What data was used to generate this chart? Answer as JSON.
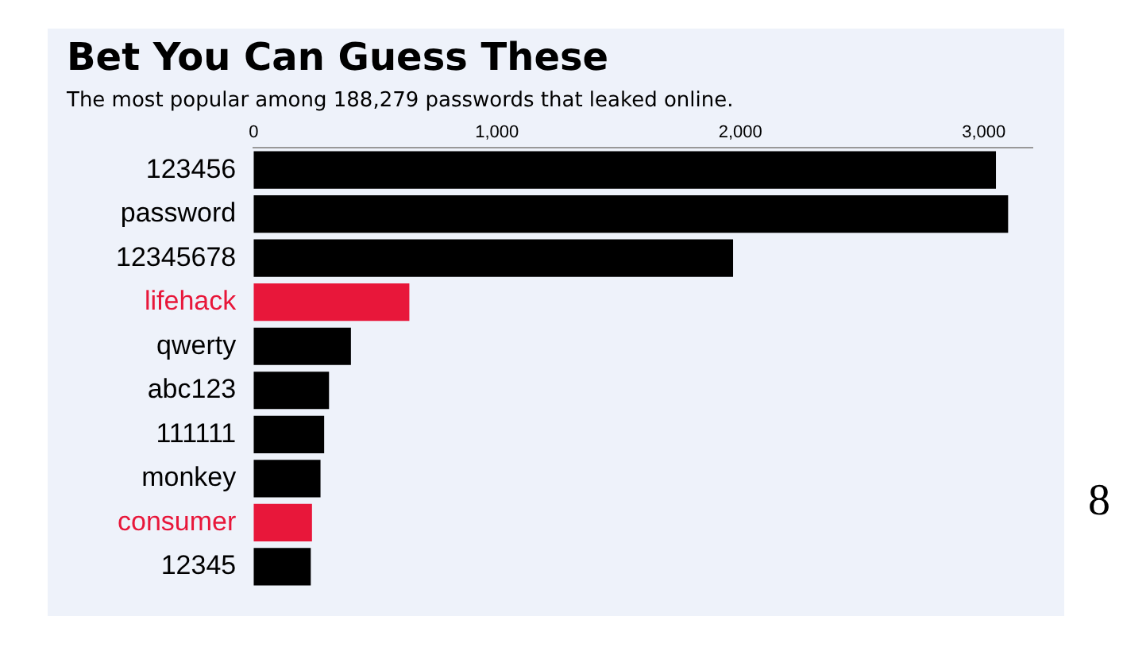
{
  "chart_data": {
    "type": "bar",
    "orientation": "horizontal",
    "title": "Bet You Can Guess These",
    "subtitle": "The most popular among 188,279 passwords that leaked online.",
    "categories": [
      "123456",
      "password",
      "12345678",
      "lifehack",
      "qwerty",
      "abc123",
      "111111",
      "monkey",
      "consumer",
      "12345"
    ],
    "values": [
      3050,
      3100,
      1970,
      640,
      400,
      310,
      290,
      275,
      240,
      235
    ],
    "colors": [
      "#000000",
      "#000000",
      "#000000",
      "#e8173a",
      "#000000",
      "#000000",
      "#000000",
      "#000000",
      "#e8173a",
      "#000000"
    ],
    "xlim": [
      0,
      3200
    ],
    "xticks": [
      0,
      {
        "value": 1000,
        "label": "1,000"
      },
      {
        "value": 2000,
        "label": "2,000"
      },
      {
        "value": 3000,
        "label": "3,000"
      }
    ],
    "grid": false,
    "legend": false,
    "annotations": [
      "8"
    ]
  }
}
